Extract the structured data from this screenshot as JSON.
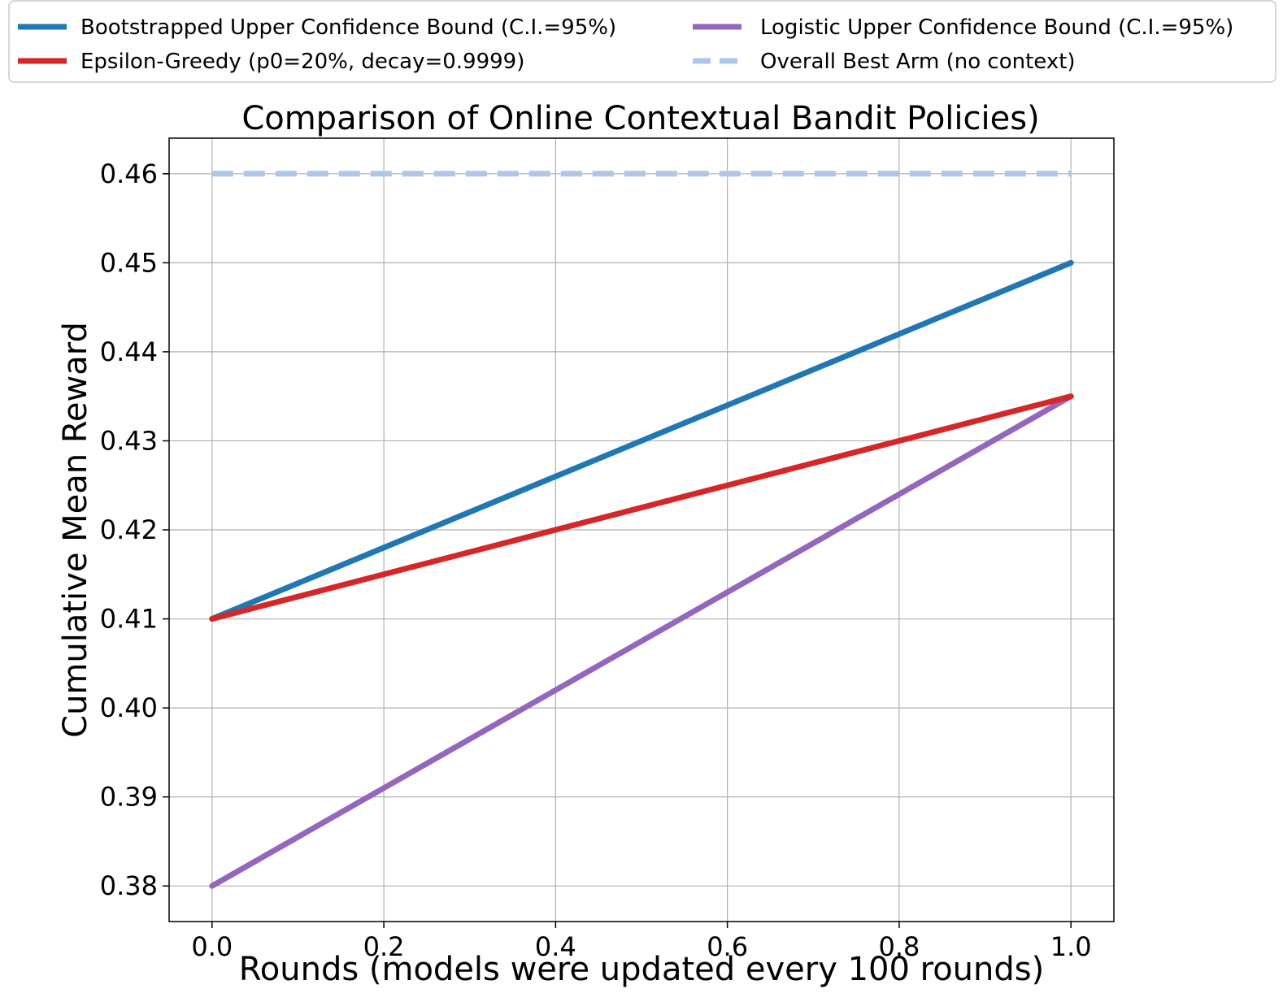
{
  "chart_data": {
    "type": "line",
    "title": "Comparison of Online Contextual Bandit Policies)",
    "xlabel": "Rounds (models were updated every 100 rounds)",
    "ylabel": "Cumulative Mean Reward",
    "xlim": [
      -0.05,
      1.05
    ],
    "ylim": [
      0.376,
      0.464
    ],
    "x_ticks": [
      "0.0",
      "0.2",
      "0.4",
      "0.6",
      "0.8",
      "1.0"
    ],
    "y_ticks": [
      "0.38",
      "0.39",
      "0.40",
      "0.41",
      "0.42",
      "0.43",
      "0.44",
      "0.45",
      "0.46"
    ],
    "grid": true,
    "legend_position": "top (above plot, two columns)",
    "series": [
      {
        "name": "Bootstrapped Upper Confidence Bound (C.I.=95%)",
        "color": "#1f77b4",
        "style": "solid",
        "x": [
          0.0,
          1.0
        ],
        "y": [
          0.41,
          0.45
        ]
      },
      {
        "name": "Epsilon-Greedy (p0=20%, decay=0.9999)",
        "color": "#d62728",
        "style": "solid",
        "x": [
          0.0,
          1.0
        ],
        "y": [
          0.41,
          0.435
        ]
      },
      {
        "name": "Logistic Upper Confidence Bound (C.I.=95%)",
        "color": "#9467bd",
        "style": "solid",
        "x": [
          0.0,
          1.0
        ],
        "y": [
          0.38,
          0.435
        ]
      },
      {
        "name": "Overall Best Arm (no context)",
        "color": "#aec7e8",
        "style": "dashed",
        "x": [
          0.0,
          1.0
        ],
        "y": [
          0.46,
          0.46
        ]
      }
    ]
  }
}
